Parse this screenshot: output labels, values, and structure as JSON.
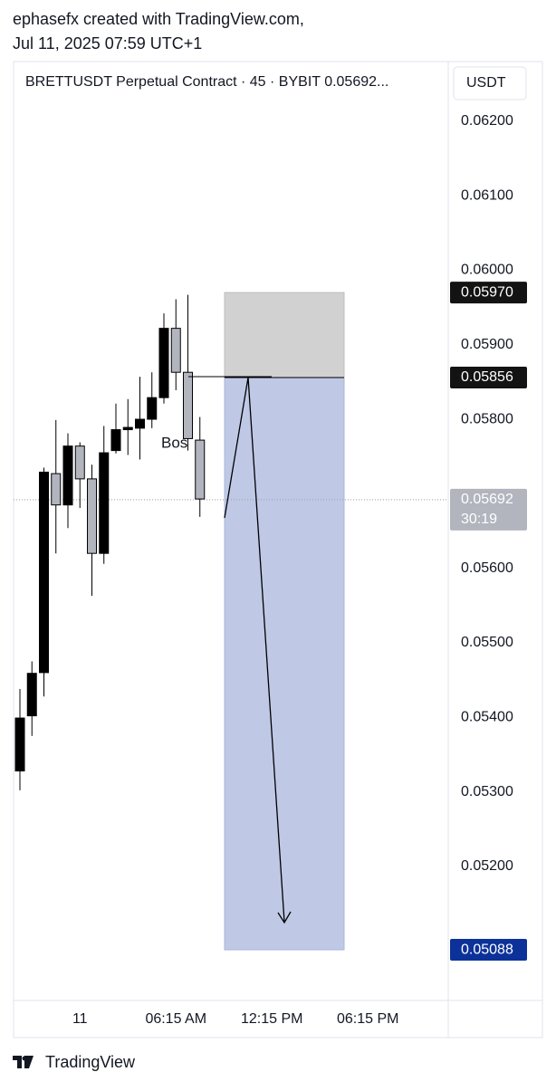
{
  "header": {
    "line1": "ephasefx created with TradingView.com,",
    "line2": "Jul 11, 2025 07:59 UTC+1"
  },
  "footer": {
    "brand": "TradingView"
  },
  "chart_data": {
    "type": "candlestick",
    "title": "BRETTUSDT Perpetual Contract · 45 · BYBIT  0.05692...",
    "currency": "USDT",
    "up_color": "#000000",
    "down_color": "#b2b5be",
    "candles": [
      {
        "open": 0.05328,
        "high": 0.05438,
        "low": 0.05302,
        "close": 0.05399
      },
      {
        "open": 0.05402,
        "high": 0.05475,
        "low": 0.05375,
        "close": 0.05459
      },
      {
        "open": 0.0546,
        "high": 0.05735,
        "low": 0.05428,
        "close": 0.05729
      },
      {
        "open": 0.05727,
        "high": 0.05799,
        "low": 0.0562,
        "close": 0.05685
      },
      {
        "open": 0.05685,
        "high": 0.05781,
        "low": 0.05654,
        "close": 0.05764
      },
      {
        "open": 0.05764,
        "high": 0.05769,
        "low": 0.05681,
        "close": 0.0572
      },
      {
        "open": 0.0572,
        "high": 0.05739,
        "low": 0.05563,
        "close": 0.0562
      },
      {
        "open": 0.0562,
        "high": 0.05791,
        "low": 0.05606,
        "close": 0.05755
      },
      {
        "open": 0.05758,
        "high": 0.05821,
        "low": 0.05754,
        "close": 0.05786
      },
      {
        "open": 0.05786,
        "high": 0.05827,
        "low": 0.05752,
        "close": 0.05789
      },
      {
        "open": 0.05788,
        "high": 0.05857,
        "low": 0.05746,
        "close": 0.058
      },
      {
        "open": 0.058,
        "high": 0.05863,
        "low": 0.05788,
        "close": 0.05829
      },
      {
        "open": 0.05829,
        "high": 0.05942,
        "low": 0.05821,
        "close": 0.05922
      },
      {
        "open": 0.05922,
        "high": 0.05961,
        "low": 0.05839,
        "close": 0.05863
      },
      {
        "open": 0.05863,
        "high": 0.05967,
        "low": 0.05758,
        "close": 0.05774
      },
      {
        "open": 0.05772,
        "high": 0.05803,
        "low": 0.05669,
        "close": 0.05693
      }
    ],
    "ylim": [
      0.0502,
      0.0628
    ],
    "yticks": [
      {
        "value": 0.062,
        "label": "0.06200"
      },
      {
        "value": 0.061,
        "label": "0.06100"
      },
      {
        "value": 0.06,
        "label": "0.06000"
      },
      {
        "value": 0.059,
        "label": "0.05900"
      },
      {
        "value": 0.058,
        "label": "0.05800"
      },
      {
        "value": 0.056,
        "label": "0.05600"
      },
      {
        "value": 0.055,
        "label": "0.05500"
      },
      {
        "value": 0.054,
        "label": "0.05400"
      },
      {
        "value": 0.053,
        "label": "0.05300"
      },
      {
        "value": 0.052,
        "label": "0.05200"
      }
    ],
    "xticks": [
      {
        "value": 5,
        "label": "11"
      },
      {
        "value": 13,
        "label": "06:15 AM"
      },
      {
        "value": 21,
        "label": "12:15 PM"
      },
      {
        "value": 29,
        "label": "06:15 PM"
      }
    ],
    "position": {
      "stop": {
        "value": 0.0597,
        "label": "0.05970"
      },
      "entry": {
        "value": 0.05856,
        "label": "0.05856"
      },
      "target": {
        "value": 0.05088,
        "label": "0.05088"
      }
    },
    "last_price": {
      "value": 0.05692,
      "label": "0.05692",
      "countdown": "30:19"
    },
    "annotation": "Bos"
  }
}
